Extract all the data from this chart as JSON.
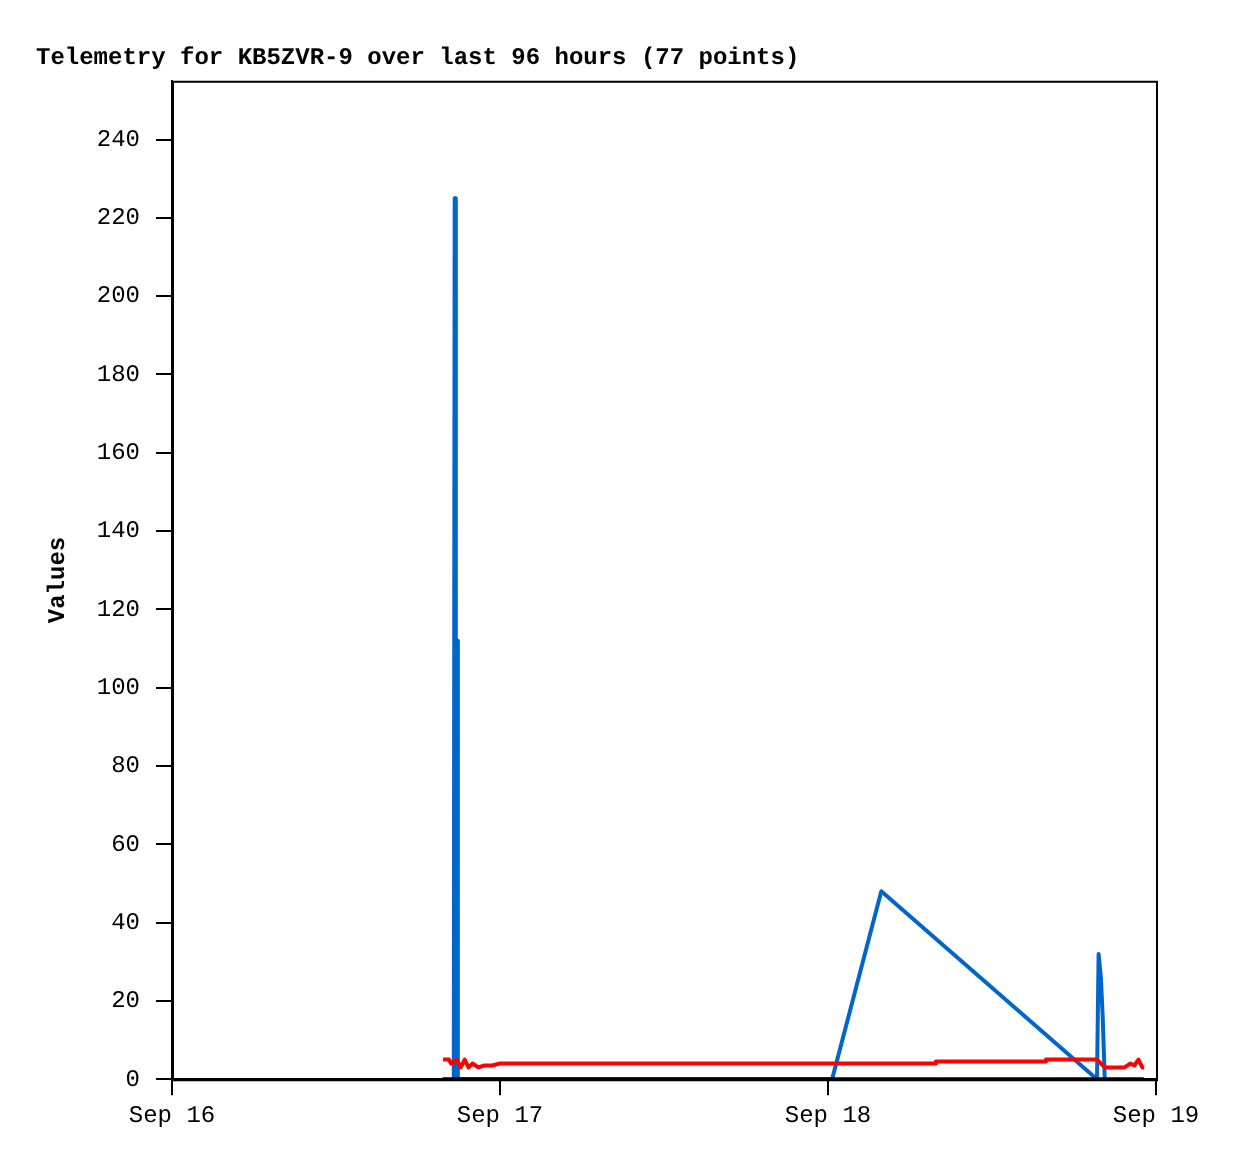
{
  "chart_data": {
    "type": "line",
    "title": "Telemetry for KB5ZVR-9 over last 96 hours (77 points)",
    "ylabel": "Values",
    "xlim": [
      "--09-16",
      "--09-19"
    ],
    "xticks": [
      {
        "value": "--09-16",
        "label": "Sep 16"
      },
      {
        "value": "--09-17",
        "label": "Sep 17"
      },
      {
        "value": "--09-18",
        "label": "Sep 18"
      },
      {
        "value": "--09-19",
        "label": "Sep 19"
      }
    ],
    "ylim": [
      0,
      255
    ],
    "yticks": [
      0,
      20,
      40,
      60,
      80,
      100,
      120,
      140,
      160,
      180,
      200,
      220,
      240
    ],
    "grid": false,
    "legend": false,
    "marker": "none",
    "line_style": "solid",
    "series": [
      {
        "color": "#000000",
        "x": [
          "--09-16T19:48",
          "--09-18T23:06"
        ],
        "values": [
          0,
          0
        ]
      },
      {
        "color": "#ff0000",
        "x": [
          "--09-16T19:50",
          "--09-16T20:16",
          "--09-16T20:25",
          "--09-16T20:50",
          "--09-16T21:08",
          "--09-16T21:25",
          "--09-16T21:42",
          "--09-16T21:59",
          "--09-16T22:25",
          "--09-16T22:51",
          "--09-16T23:25",
          "--09-17T00:00",
          "--09-18T07:46",
          "--09-18T07:54",
          "--09-18T15:49",
          "--09-18T15:57",
          "--09-18T19:41",
          "--09-18T20:16",
          "--09-18T21:42",
          "--09-18T22:08",
          "--09-18T22:25",
          "--09-18T22:43",
          "--09-18T23:00",
          "--09-18T23:08"
        ],
        "values": [
          5,
          5,
          4,
          5,
          3,
          5,
          3,
          4,
          3,
          3.5,
          3.5,
          4,
          4,
          4.5,
          4.5,
          5,
          5,
          3,
          3,
          4,
          3.5,
          5,
          3,
          3
        ]
      },
      {
        "color": "#0066cc",
        "x": [
          "--09-16T20:37",
          "--09-16T20:41",
          "--09-16T20:46",
          "--09-16T20:51",
          "--09-16T20:55",
          "--09-18T00:18",
          "--09-18T03:54",
          "--09-18T19:41",
          "--09-18T19:48",
          "--09-18T19:58",
          "--09-18T20:06",
          "--09-18T20:15"
        ],
        "values": [
          0,
          225,
          0,
          112,
          0,
          0,
          48,
          0,
          32,
          26,
          16,
          0
        ]
      }
    ]
  }
}
